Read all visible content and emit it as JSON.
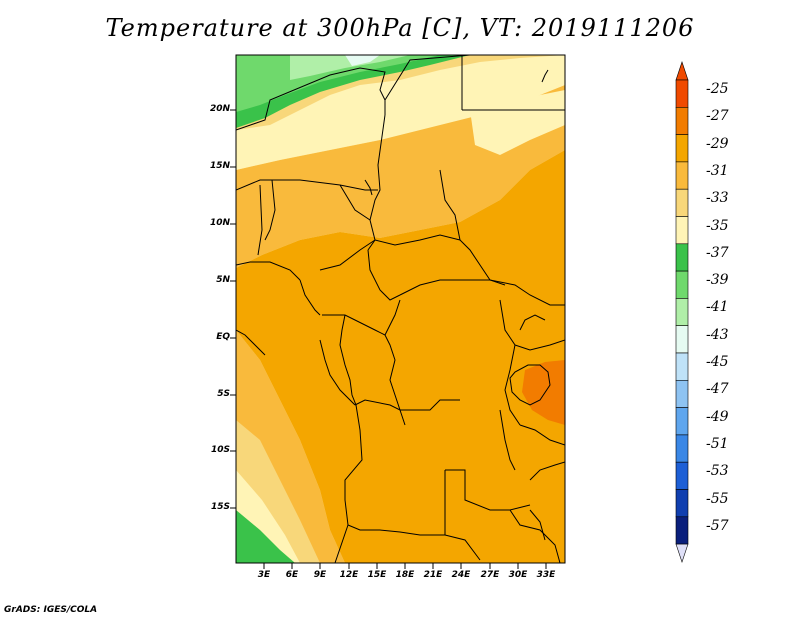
{
  "title": "Temperature at 300hPa [C], VT: 2019111206",
  "credit": "GrADS: IGES/COLA",
  "map": {
    "lat_labels": [
      "20N",
      "15N",
      "10N",
      "5N",
      "EQ",
      "5S",
      "10S",
      "15S"
    ],
    "lon_labels": [
      "3E",
      "6E",
      "9E",
      "12E",
      "15E",
      "18E",
      "21E",
      "24E",
      "27E",
      "30E",
      "33E"
    ],
    "extent_lon": [
      0,
      35
    ],
    "extent_lat": [
      -20,
      25
    ]
  },
  "colorbar": {
    "labels": [
      "-25",
      "-27",
      "-29",
      "-31",
      "-33",
      "-35",
      "-37",
      "-39",
      "-41",
      "-43",
      "-45",
      "-47",
      "-49",
      "-51",
      "-53",
      "-55",
      "-57"
    ],
    "colors": [
      "#f04a00",
      "#f27c00",
      "#f4a600",
      "#f9ba3c",
      "#f8d77a",
      "#fff4b6",
      "#3ac24a",
      "#6fd96c",
      "#b0efa8",
      "#e6fbf2",
      "#bfe2f8",
      "#8ec3f2",
      "#5fa6ee",
      "#3a87e6",
      "#1d5fd6",
      "#103fb0",
      "#0a1f7c"
    ],
    "top_triangle_color": "#f04a00",
    "bottom_triangle_color": "#dfe0f8"
  }
}
